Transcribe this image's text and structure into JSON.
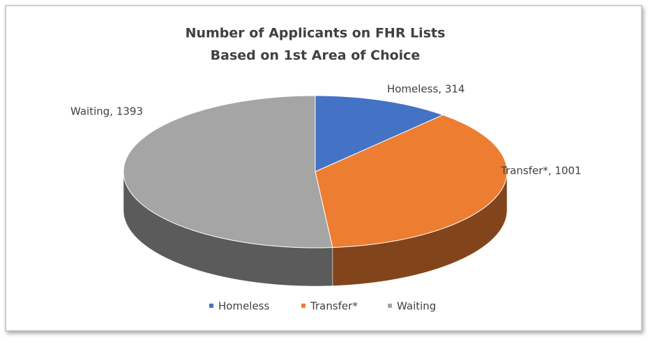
{
  "chart_data": {
    "type": "pie3d",
    "title": [
      "Number of Applicants on FHR Lists",
      "Based on 1st Area of Choice"
    ],
    "categories": [
      "Homeless",
      "Transfer*",
      "Waiting"
    ],
    "values": [
      314,
      1001,
      1393
    ],
    "value_labels": [
      "Homeless, 314",
      "Transfer*, 1001",
      "Waiting, 1393"
    ],
    "colors": [
      "#4472c4",
      "#ed7d31",
      "#a5a5a5"
    ],
    "legend": "bottom"
  }
}
